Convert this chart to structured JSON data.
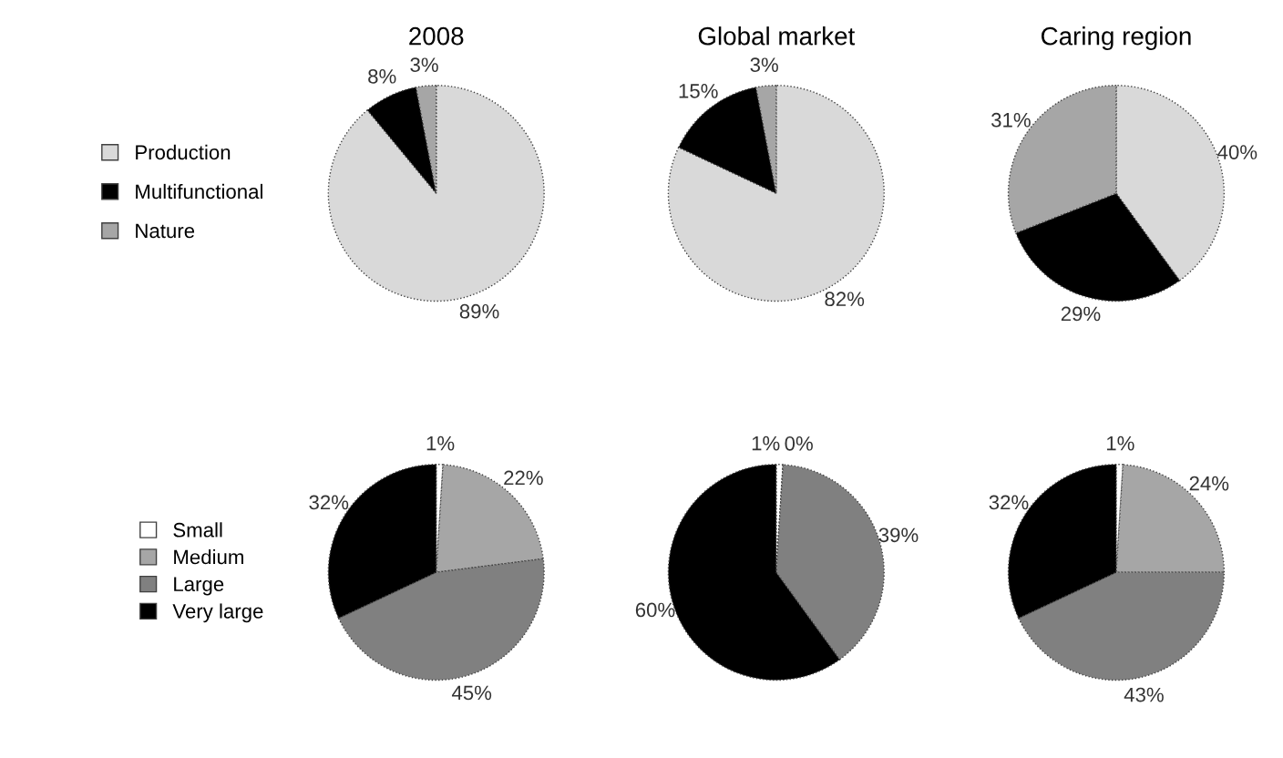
{
  "chart_data": [
    {
      "type": "pie",
      "title": "2008",
      "categories": [
        "Production",
        "Multifunctional",
        "Nature"
      ],
      "values": [
        89,
        8,
        3
      ],
      "colors": [
        "#d9d9d9",
        "#000000",
        "#a6a6a6"
      ],
      "value_labels": [
        "89%",
        "8%",
        "3%"
      ],
      "legend": "left"
    },
    {
      "type": "pie",
      "title": "Global market",
      "values": [
        82,
        15,
        3
      ],
      "colors": [
        "#d9d9d9",
        "#000000",
        "#a6a6a6"
      ],
      "value_labels": [
        "82%",
        "15%",
        "3%"
      ]
    },
    {
      "type": "pie",
      "title": "Caring region",
      "values": [
        40,
        29,
        31
      ],
      "colors": [
        "#d9d9d9",
        "#000000",
        "#a6a6a6"
      ],
      "value_labels": [
        "40%",
        "29%",
        "31%"
      ]
    },
    {
      "type": "pie",
      "categories": [
        "Small",
        "Medium",
        "Large",
        "Very large"
      ],
      "values": [
        1,
        22,
        45,
        32
      ],
      "colors": [
        "#ffffff",
        "#a6a6a6",
        "#808080",
        "#000000"
      ],
      "value_labels": [
        "1%",
        "22%",
        "45%",
        "32%"
      ],
      "legend": "left"
    },
    {
      "type": "pie",
      "values": [
        1,
        0,
        39,
        60
      ],
      "colors": [
        "#ffffff",
        "#a6a6a6",
        "#808080",
        "#000000"
      ],
      "value_labels": [
        "1%",
        "0%",
        "39%",
        "60%"
      ]
    },
    {
      "type": "pie",
      "values": [
        1,
        24,
        43,
        32
      ],
      "colors": [
        "#ffffff",
        "#a6a6a6",
        "#808080",
        "#000000"
      ],
      "value_labels": [
        "1%",
        "24%",
        "43%",
        "32%"
      ]
    }
  ]
}
